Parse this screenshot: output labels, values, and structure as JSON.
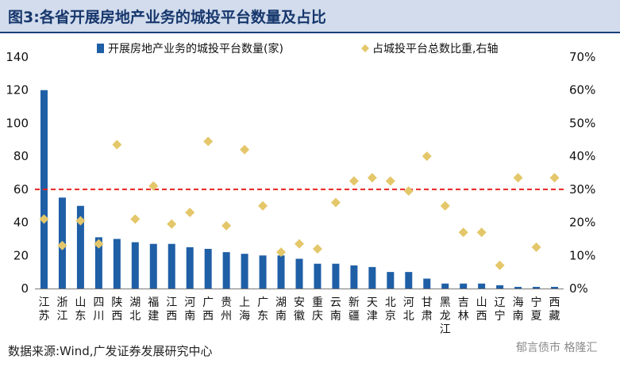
{
  "title": "图3:各省开展房地产业务的城投平台数量及占比",
  "source": "数据来源:Wind,广发证券发展研究中心",
  "watermark": "郁言债市 格隆汇",
  "colors": {
    "bar": "#1f5fa6",
    "diamond": "#e4c76a",
    "refline": "#e8231f",
    "title_bg": "#d2dcec",
    "title_text": "#17376d"
  },
  "chart_data": {
    "type": "bar",
    "categories": [
      "江苏",
      "浙江",
      "山东",
      "四川",
      "陕西",
      "湖北",
      "福建",
      "江西",
      "河南",
      "广西",
      "贵州",
      "上海",
      "广东",
      "湖南",
      "安徽",
      "重庆",
      "云南",
      "新疆",
      "天津",
      "北京",
      "河北",
      "甘肃",
      "黑龙江",
      "吉林",
      "山西",
      "辽宁",
      "海南",
      "宁夏",
      "西藏"
    ],
    "series": [
      {
        "name": "开展房地产业务的城投平台数量(家)",
        "type": "bar",
        "axis": "left",
        "values": [
          120,
          55,
          50,
          31,
          30,
          28,
          27,
          27,
          25,
          24,
          22,
          21,
          20,
          20,
          18,
          15,
          15,
          14,
          13,
          10,
          10,
          6,
          3,
          3,
          3,
          2,
          1,
          1,
          1
        ]
      },
      {
        "name": "占城投平台总数比重,右轴",
        "type": "scatter",
        "marker": "diamond",
        "axis": "right",
        "values": [
          21,
          13,
          20.5,
          13.5,
          43.5,
          21,
          31,
          19.5,
          23,
          44.5,
          19,
          42,
          25,
          11,
          13.5,
          12,
          26,
          32.5,
          33.5,
          32.5,
          29.5,
          40,
          25,
          17,
          17,
          7,
          33.5,
          12.5,
          33.5
        ]
      }
    ],
    "y_left": {
      "min": 0,
      "max": 140,
      "ticks": [
        0,
        20,
        40,
        60,
        80,
        100,
        120,
        140
      ]
    },
    "y_right": {
      "min": 0,
      "max": 70,
      "ticks": [
        "0%",
        "10%",
        "20%",
        "30%",
        "40%",
        "50%",
        "60%",
        "70%"
      ]
    },
    "reference_line": {
      "axis": "left",
      "value": 60,
      "style": "dashed"
    },
    "legend_position": "top",
    "grid": false
  }
}
